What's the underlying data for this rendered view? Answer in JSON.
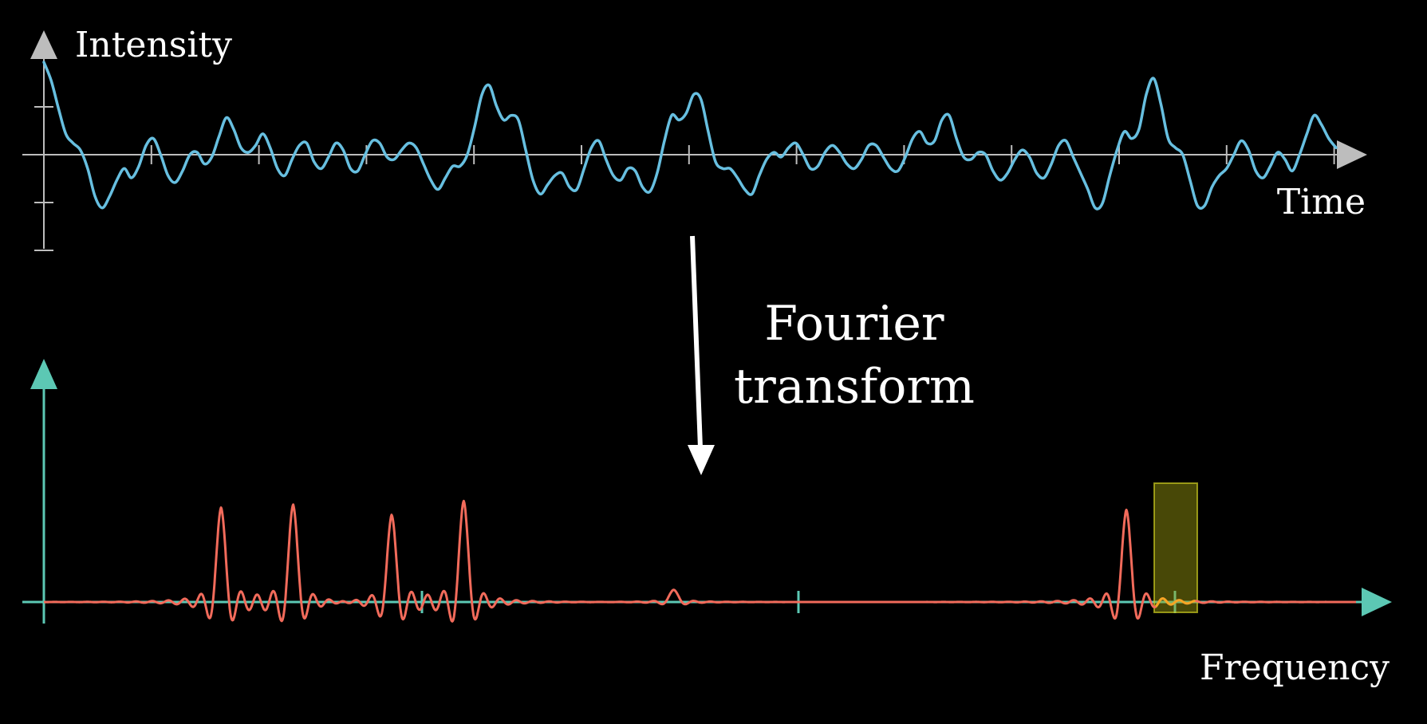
{
  "labels": {
    "y_axis_top": "Intensity",
    "x_axis_top": "Time",
    "caption_line1": "Fourier",
    "caption_line2": "transform",
    "x_axis_bottom": "Frequency"
  },
  "colors": {
    "background": "#000000",
    "axis_gray": "#bdbdbd",
    "axis_teal": "#5cc8b4",
    "signal_blue": "#67bfe0",
    "spectrum_red": "#f26b5b",
    "highlight_yellow": "#c8c820",
    "highlight_peak": "#f5a623",
    "arrow_white": "#ffffff"
  },
  "time_signal": {
    "description_free": true,
    "samples": [
      2.0,
      1.6,
      1.0,
      0.45,
      0.25,
      0.1,
      -0.3,
      -0.9,
      -1.15,
      -0.9,
      -0.55,
      -0.3,
      -0.5,
      -0.25,
      0.2,
      0.35,
      0.0,
      -0.45,
      -0.6,
      -0.35,
      0.0,
      0.05,
      -0.2,
      -0.05,
      0.4,
      0.8,
      0.55,
      0.15,
      0.05,
      0.2,
      0.45,
      0.15,
      -0.3,
      -0.45,
      -0.1,
      0.2,
      0.25,
      -0.15,
      -0.3,
      -0.05,
      0.25,
      0.1,
      -0.3,
      -0.35,
      0.0,
      0.3,
      0.25,
      -0.05,
      -0.1,
      0.1,
      0.25,
      0.15,
      -0.2,
      -0.55,
      -0.75,
      -0.5,
      -0.25,
      -0.25,
      0.0,
      0.6,
      1.3,
      1.5,
      1.05,
      0.75,
      0.85,
      0.75,
      0.1,
      -0.55,
      -0.85,
      -0.65,
      -0.45,
      -0.4,
      -0.7,
      -0.75,
      -0.3,
      0.15,
      0.3,
      -0.1,
      -0.45,
      -0.55,
      -0.3,
      -0.35,
      -0.7,
      -0.8,
      -0.4,
      0.3,
      0.85,
      0.75,
      0.9,
      1.3,
      1.2,
      0.5,
      -0.15,
      -0.3,
      -0.3,
      -0.5,
      -0.75,
      -0.85,
      -0.45,
      -0.1,
      0.05,
      -0.05,
      0.15,
      0.25,
      0.0,
      -0.3,
      -0.25,
      0.05,
      0.2,
      0.05,
      -0.2,
      -0.3,
      -0.1,
      0.2,
      0.2,
      -0.05,
      -0.3,
      -0.35,
      -0.05,
      0.35,
      0.5,
      0.25,
      0.3,
      0.75,
      0.85,
      0.35,
      -0.05,
      -0.1,
      0.05,
      0.0,
      -0.35,
      -0.55,
      -0.4,
      -0.1,
      0.1,
      -0.05,
      -0.4,
      -0.5,
      -0.2,
      0.2,
      0.3,
      -0.05,
      -0.4,
      -0.75,
      -1.15,
      -1.05,
      -0.45,
      0.1,
      0.5,
      0.35,
      0.55,
      1.3,
      1.65,
      1.1,
      0.35,
      0.15,
      0.0,
      -0.55,
      -1.1,
      -1.1,
      -0.7,
      -0.45,
      -0.3,
      0.0,
      0.3,
      0.1,
      -0.35,
      -0.5,
      -0.25,
      0.05,
      -0.1,
      -0.35,
      0.0,
      0.45,
      0.85,
      0.65,
      0.35,
      0.15
    ]
  },
  "spectrum": {
    "peaks": [
      {
        "freq": 0.135,
        "amplitude": 1.0
      },
      {
        "freq": 0.19,
        "amplitude": 1.03
      },
      {
        "freq": 0.265,
        "amplitude": 0.92
      },
      {
        "freq": 0.32,
        "amplitude": 1.07
      },
      {
        "freq": 0.48,
        "amplitude": 0.13
      },
      {
        "freq": 0.825,
        "amplitude": 0.98
      }
    ],
    "highlighted_peak_index": 5
  }
}
